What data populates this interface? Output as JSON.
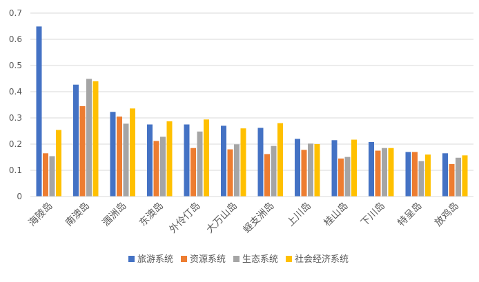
{
  "chart_data": {
    "type": "bar",
    "title": "",
    "xlabel": "",
    "ylabel": "",
    "ylim": [
      0,
      0.7
    ],
    "yticks": [
      "0",
      "0.1",
      "0.2",
      "0.3",
      "0.4",
      "0.5",
      "0.6",
      "0.7"
    ],
    "grid": true,
    "legend_position": "bottom",
    "categories": [
      "海陵岛",
      "南澳岛",
      "涠洲岛",
      "东澳岛",
      "外伶仃岛",
      "大万山岛",
      "蛏支洲岛",
      "上川岛",
      "桂山岛",
      "下川岛",
      "特呈岛",
      "放鸡岛"
    ],
    "series": [
      {
        "name": "旅游系统",
        "color": "#4472C4",
        "values": [
          0.649,
          0.427,
          0.323,
          0.275,
          0.275,
          0.27,
          0.262,
          0.22,
          0.215,
          0.208,
          0.17,
          0.165
        ]
      },
      {
        "name": "资源系统",
        "color": "#ED7D31",
        "values": [
          0.165,
          0.345,
          0.305,
          0.212,
          0.185,
          0.18,
          0.162,
          0.178,
          0.145,
          0.175,
          0.17,
          0.124
        ]
      },
      {
        "name": "生态系统",
        "color": "#A5A5A5",
        "values": [
          0.154,
          0.449,
          0.278,
          0.228,
          0.248,
          0.199,
          0.193,
          0.202,
          0.151,
          0.185,
          0.135,
          0.148
        ]
      },
      {
        "name": "社会经济系统",
        "color": "#FFC000",
        "values": [
          0.254,
          0.44,
          0.336,
          0.287,
          0.294,
          0.26,
          0.28,
          0.2,
          0.217,
          0.185,
          0.16,
          0.157
        ]
      }
    ]
  }
}
